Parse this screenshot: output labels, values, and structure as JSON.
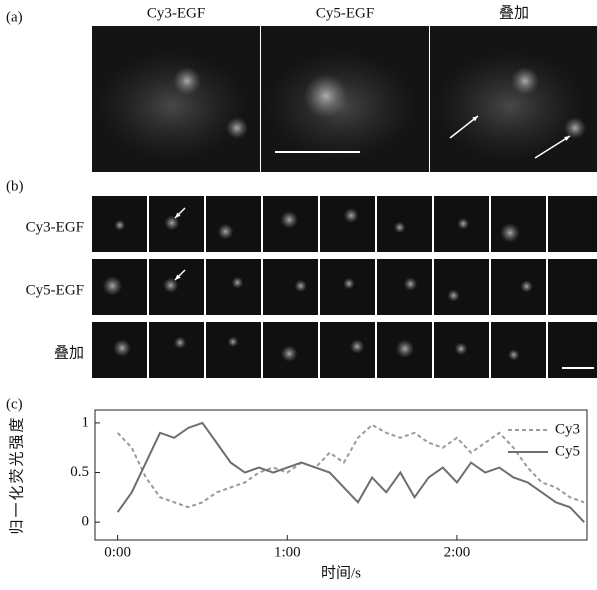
{
  "panel_a": {
    "label": "(a)",
    "columns": [
      "Cy3-EGF",
      "Cy5-EGF",
      "叠加"
    ]
  },
  "panel_b": {
    "label": "(b)",
    "rows": [
      "Cy3-EGF",
      "Cy5-EGF",
      "叠加"
    ]
  },
  "panel_c": {
    "label": "(c)"
  },
  "chart_data": {
    "type": "line",
    "xlabel": "时间/s",
    "ylabel": "归一化荧光强度",
    "x": [
      0,
      5,
      10,
      15,
      20,
      25,
      30,
      35,
      40,
      45,
      50,
      55,
      60,
      65,
      70,
      75,
      80,
      85,
      90,
      95,
      100,
      105,
      110,
      115,
      120,
      125,
      130,
      135,
      140,
      145,
      150,
      155,
      160,
      165
    ],
    "series": [
      {
        "name": "Cy3",
        "color": "#9a9a9a",
        "style": "dashed",
        "values": [
          0.9,
          0.75,
          0.45,
          0.25,
          0.2,
          0.15,
          0.2,
          0.3,
          0.35,
          0.4,
          0.5,
          0.55,
          0.5,
          0.6,
          0.55,
          0.7,
          0.6,
          0.85,
          0.98,
          0.9,
          0.85,
          0.9,
          0.8,
          0.75,
          0.85,
          0.7,
          0.8,
          0.9,
          0.75,
          0.55,
          0.4,
          0.35,
          0.25,
          0.2
        ]
      },
      {
        "name": "Cy5",
        "color": "#6e6e6e",
        "style": "solid",
        "values": [
          0.1,
          0.3,
          0.6,
          0.9,
          0.85,
          0.95,
          1.0,
          0.8,
          0.6,
          0.5,
          0.55,
          0.5,
          0.55,
          0.6,
          0.55,
          0.5,
          0.35,
          0.2,
          0.45,
          0.3,
          0.5,
          0.25,
          0.45,
          0.55,
          0.4,
          0.6,
          0.5,
          0.55,
          0.45,
          0.4,
          0.3,
          0.2,
          0.15,
          0.0
        ]
      }
    ],
    "xlim": [
      -8,
      166
    ],
    "ylim": [
      -0.18,
      1.13
    ],
    "xticks": [
      {
        "value": 0,
        "label": "0:00"
      },
      {
        "value": 60,
        "label": "1:00"
      },
      {
        "value": 120,
        "label": "2:00"
      }
    ],
    "yticks": [
      0,
      0.5,
      1
    ],
    "legend": "upper right"
  }
}
